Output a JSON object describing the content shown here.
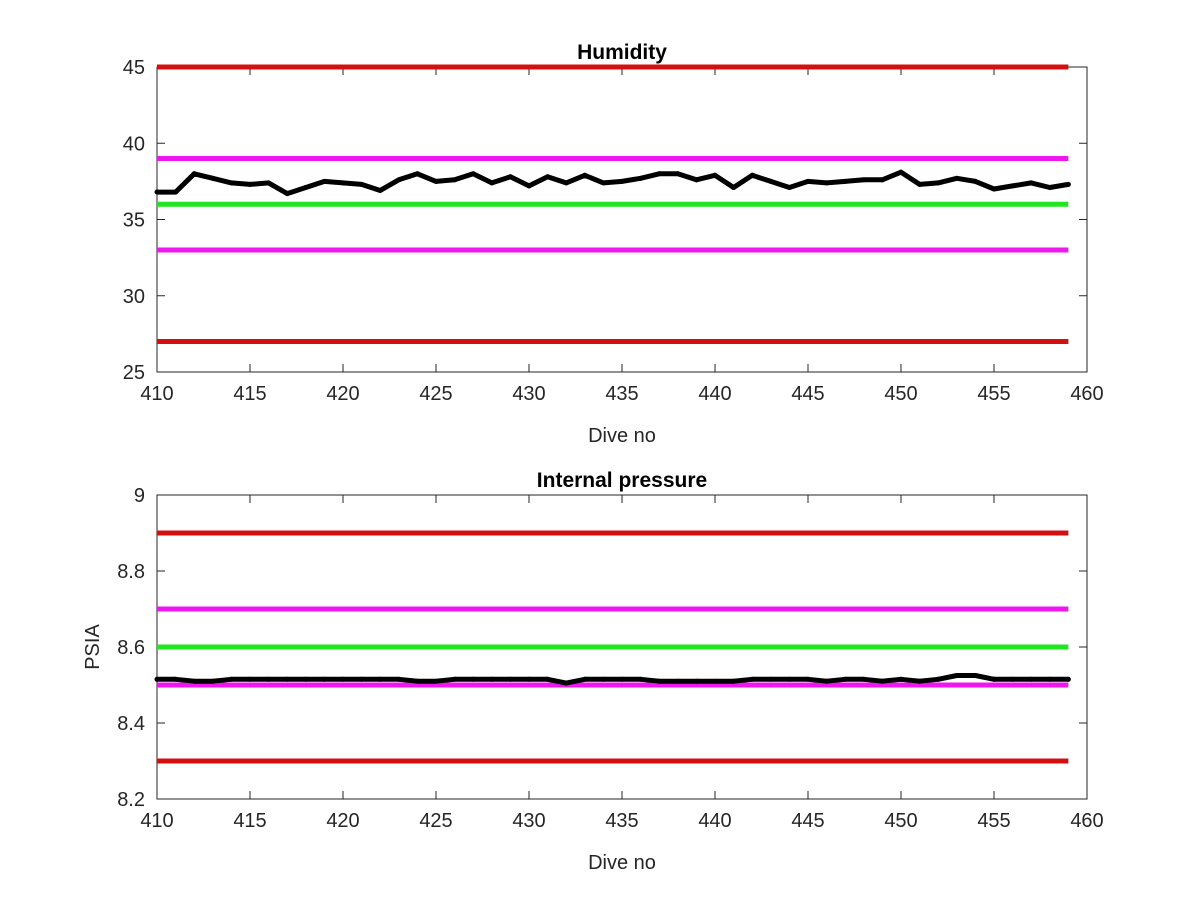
{
  "chart_data": [
    {
      "type": "line",
      "title": "Humidity",
      "xlabel": "Dive no",
      "ylabel": "",
      "xlim": [
        410,
        460
      ],
      "ylim": [
        25,
        45
      ],
      "xticks": [
        410,
        415,
        420,
        425,
        430,
        435,
        440,
        445,
        450,
        455,
        460
      ],
      "yticks": [
        25,
        30,
        35,
        40,
        45
      ],
      "x_range": [
        410,
        459
      ],
      "grid": false,
      "legend": "none",
      "series": [
        {
          "kind": "data",
          "color": "#000000",
          "x": [
            410,
            411,
            412,
            413,
            414,
            415,
            416,
            417,
            418,
            419,
            420,
            421,
            422,
            423,
            424,
            425,
            426,
            427,
            428,
            429,
            430,
            431,
            432,
            433,
            434,
            435,
            436,
            437,
            438,
            439,
            440,
            441,
            442,
            443,
            444,
            445,
            446,
            447,
            448,
            449,
            450,
            451,
            452,
            453,
            454,
            455,
            456,
            457,
            458,
            459
          ],
          "values": [
            36.8,
            36.8,
            38.0,
            37.7,
            37.4,
            37.3,
            37.4,
            36.7,
            37.1,
            37.5,
            37.4,
            37.3,
            36.9,
            37.6,
            38.0,
            37.5,
            37.6,
            38.0,
            37.4,
            37.8,
            37.2,
            37.8,
            37.4,
            37.9,
            37.4,
            37.5,
            37.7,
            38.0,
            38.0,
            37.6,
            37.9,
            37.1,
            37.9,
            37.5,
            37.1,
            37.5,
            37.4,
            37.5,
            37.6,
            37.6,
            38.1,
            37.3,
            37.4,
            37.7,
            37.5,
            37.0,
            37.2,
            37.4,
            37.1,
            37.3
          ]
        },
        {
          "kind": "limit",
          "color": "#d40f0f",
          "value": 45
        },
        {
          "kind": "limit",
          "color": "#ef17ef",
          "value": 39
        },
        {
          "kind": "limit",
          "color": "#1fe61f",
          "value": 36
        },
        {
          "kind": "limit",
          "color": "#ef17ef",
          "value": 33
        },
        {
          "kind": "limit",
          "color": "#d40f0f",
          "value": 27
        }
      ]
    },
    {
      "type": "line",
      "title": "Internal pressure",
      "xlabel": "Dive no",
      "ylabel": "PSIA",
      "xlim": [
        410,
        460
      ],
      "ylim": [
        8.2,
        9
      ],
      "xticks": [
        410,
        415,
        420,
        425,
        430,
        435,
        440,
        445,
        450,
        455,
        460
      ],
      "yticks": [
        8.2,
        8.4,
        8.6,
        8.8,
        9
      ],
      "x_range": [
        410,
        459
      ],
      "grid": false,
      "legend": "none",
      "series": [
        {
          "kind": "data",
          "color": "#000000",
          "x": [
            410,
            411,
            412,
            413,
            414,
            415,
            416,
            417,
            418,
            419,
            420,
            421,
            422,
            423,
            424,
            425,
            426,
            427,
            428,
            429,
            430,
            431,
            432,
            433,
            434,
            435,
            436,
            437,
            438,
            439,
            440,
            441,
            442,
            443,
            444,
            445,
            446,
            447,
            448,
            449,
            450,
            451,
            452,
            453,
            454,
            455,
            456,
            457,
            458,
            459
          ],
          "values": [
            8.515,
            8.515,
            8.51,
            8.51,
            8.515,
            8.515,
            8.515,
            8.515,
            8.515,
            8.515,
            8.515,
            8.515,
            8.515,
            8.515,
            8.51,
            8.51,
            8.515,
            8.515,
            8.515,
            8.515,
            8.515,
            8.515,
            8.505,
            8.515,
            8.515,
            8.515,
            8.515,
            8.51,
            8.51,
            8.51,
            8.51,
            8.51,
            8.515,
            8.515,
            8.515,
            8.515,
            8.51,
            8.515,
            8.515,
            8.51,
            8.515,
            8.51,
            8.515,
            8.525,
            8.525,
            8.515,
            8.515,
            8.515,
            8.515,
            8.515
          ]
        },
        {
          "kind": "limit",
          "color": "#d40f0f",
          "value": 8.9
        },
        {
          "kind": "limit",
          "color": "#ef17ef",
          "value": 8.7
        },
        {
          "kind": "limit",
          "color": "#1fe61f",
          "value": 8.6
        },
        {
          "kind": "limit",
          "color": "#ef17ef",
          "value": 8.5
        },
        {
          "kind": "limit",
          "color": "#d40f0f",
          "value": 8.3
        }
      ]
    }
  ]
}
